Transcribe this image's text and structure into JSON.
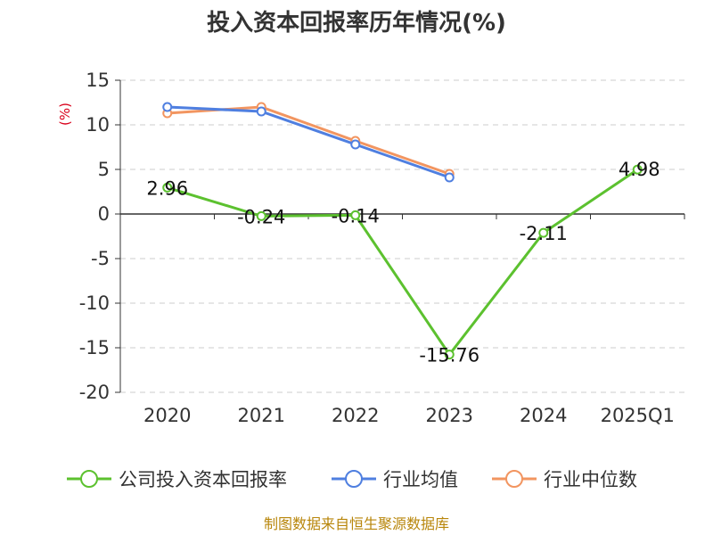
{
  "chart_data": {
    "type": "line",
    "title": "投入资本回报率历年情况(%)",
    "unit_label": "(%)",
    "categories": [
      "2020",
      "2021",
      "2022",
      "2023",
      "2024",
      "2025Q1"
    ],
    "ylim": [
      -20,
      15
    ],
    "yticks": [
      15,
      10,
      5,
      0,
      -5,
      -10,
      -15,
      -20
    ],
    "grid": true,
    "legend_position": "bottom",
    "series": [
      {
        "name": "公司投入资本回报率",
        "color": "#5cc12f",
        "values": [
          2.96,
          -0.24,
          -0.14,
          -15.76,
          -2.11,
          4.98
        ],
        "labels": [
          "2.96",
          "-0.24",
          "-0.14",
          "-15.76",
          "-2.11",
          "4.98"
        ]
      },
      {
        "name": "行业均值",
        "color": "#4f7fe0",
        "values": [
          12.0,
          11.5,
          7.8,
          4.1,
          null,
          null
        ]
      },
      {
        "name": "行业中位数",
        "color": "#f29560",
        "values": [
          11.3,
          12.0,
          8.2,
          4.5,
          null,
          null
        ]
      }
    ]
  },
  "source": "制图数据来自恒生聚源数据库"
}
